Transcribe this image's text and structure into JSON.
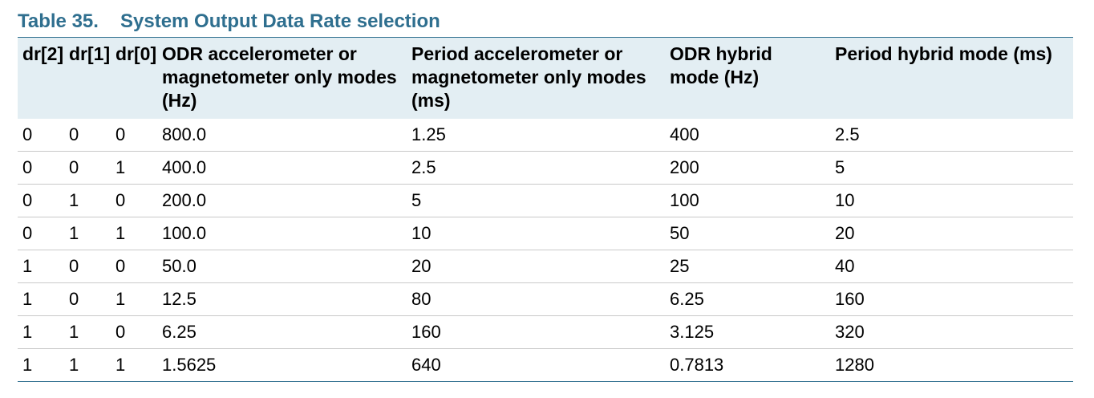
{
  "caption": {
    "number": "Table 35.",
    "title": "System Output Data Rate selection"
  },
  "table": {
    "headers": [
      "dr[2]",
      "dr[1]",
      "dr[0]",
      "ODR accelerometer or magnetometer only modes (Hz)",
      "Period accelerometer or magnetometer only modes (ms)",
      "ODR hybrid mode (Hz)",
      "Period hybrid mode (ms)"
    ],
    "rows": [
      [
        "0",
        "0",
        "0",
        "800.0",
        "1.25",
        "400",
        "2.5"
      ],
      [
        "0",
        "0",
        "1",
        "400.0",
        "2.5",
        "200",
        "5"
      ],
      [
        "0",
        "1",
        "0",
        "200.0",
        "5",
        "100",
        "10"
      ],
      [
        "0",
        "1",
        "1",
        "100.0",
        "10",
        "50",
        "20"
      ],
      [
        "1",
        "0",
        "0",
        "50.0",
        "20",
        "25",
        "40"
      ],
      [
        "1",
        "0",
        "1",
        "12.5",
        "80",
        "6.25",
        "160"
      ],
      [
        "1",
        "1",
        "0",
        "6.25",
        "160",
        "3.125",
        "320"
      ],
      [
        "1",
        "1",
        "1",
        "1.5625",
        "640",
        "0.7813",
        "1280"
      ]
    ]
  },
  "colors": {
    "accent": "#2f6f8f",
    "header_bg": "#e3eef3",
    "row_rule": "#c9c9c9"
  }
}
